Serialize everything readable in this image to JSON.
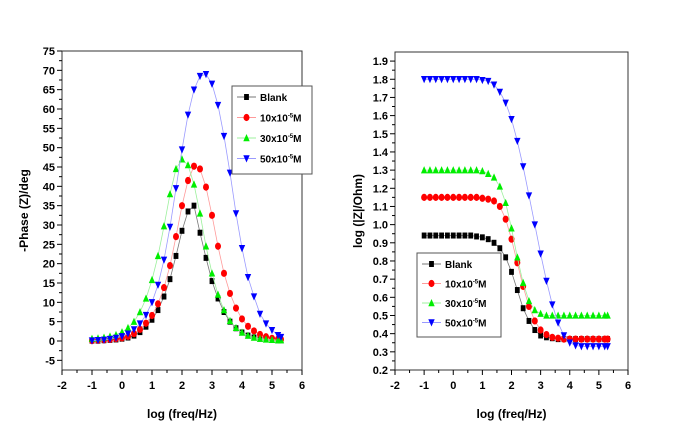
{
  "chart_data": [
    {
      "type": "line",
      "id": "phase",
      "title": "",
      "xlabel": "log (freq/Hz)",
      "ylabel": "-Phase (Z)/deg",
      "xlim": [
        -2,
        6
      ],
      "ylim": [
        -7.5,
        75
      ],
      "xticks": [
        -2,
        -1,
        0,
        1,
        2,
        3,
        4,
        5,
        6
      ],
      "xtick_labels": [
        "-2",
        "-1",
        "0",
        "1",
        "2",
        "3",
        "4",
        "5",
        "6"
      ],
      "yticks": [
        -5,
        0,
        5,
        10,
        15,
        20,
        25,
        30,
        35,
        40,
        45,
        50,
        55,
        60,
        65,
        70,
        75
      ],
      "ytick_labels": [
        "-5",
        "0",
        "5",
        "10",
        "15",
        "20",
        "25",
        "30",
        "35",
        "40",
        "45",
        "50",
        "55",
        "60",
        "65",
        "70",
        "75"
      ],
      "grid": false,
      "legend_position": "top-right",
      "x": [
        -1.0,
        -0.8,
        -0.6,
        -0.4,
        -0.2,
        0.0,
        0.2,
        0.4,
        0.6,
        0.8,
        1.0,
        1.2,
        1.4,
        1.6,
        1.8,
        2.0,
        2.2,
        2.4,
        2.6,
        2.8,
        3.0,
        3.2,
        3.4,
        3.6,
        3.8,
        4.0,
        4.2,
        4.4,
        4.6,
        4.8,
        5.0,
        5.2,
        5.3
      ],
      "series": [
        {
          "name": "Blank",
          "color": "#000000",
          "marker": "square",
          "values": [
            0.1,
            0.1,
            0.2,
            0.3,
            0.4,
            0.6,
            0.9,
            1.4,
            2.3,
            3.7,
            5.5,
            8.0,
            11.5,
            16.0,
            22.0,
            28.5,
            33.5,
            35.0,
            28.0,
            21.5,
            15.5,
            11.0,
            7.5,
            5.0,
            3.3,
            2.2,
            1.4,
            0.9,
            0.6,
            0.4,
            0.3,
            0.2,
            0.2
          ]
        },
        {
          "name": "10x10^-5M",
          "color": "#ff0000",
          "marker": "circle",
          "values": [
            0.1,
            0.2,
            0.3,
            0.4,
            0.6,
            0.8,
            1.2,
            1.9,
            3.0,
            4.6,
            6.6,
            9.6,
            13.8,
            19.5,
            27.0,
            35.0,
            41.5,
            45.2,
            44.5,
            39.8,
            32.5,
            24.5,
            17.5,
            12.3,
            8.5,
            5.7,
            3.8,
            2.6,
            1.7,
            1.1,
            0.7,
            0.5,
            0.4
          ]
        },
        {
          "name": "30x10^-5M",
          "color": "#00ee00",
          "marker": "triangle-up",
          "values": [
            0.6,
            0.7,
            0.9,
            1.2,
            1.6,
            2.3,
            3.4,
            5.0,
            7.5,
            11.0,
            15.8,
            22.0,
            29.7,
            38.0,
            44.5,
            47.0,
            45.5,
            40.5,
            33.0,
            24.5,
            17.5,
            12.0,
            8.0,
            5.2,
            3.4,
            2.2,
            1.4,
            0.9,
            0.6,
            0.4,
            0.3,
            0.2,
            0.2
          ]
        },
        {
          "name": "50x10^-5M",
          "color": "#0000ff",
          "marker": "triangle-down",
          "values": [
            0.1,
            0.2,
            0.3,
            0.5,
            0.8,
            1.2,
            1.9,
            3.0,
            4.5,
            6.7,
            10.0,
            14.5,
            21.0,
            29.5,
            39.5,
            49.5,
            58.5,
            65.0,
            68.5,
            69.0,
            66.5,
            61.0,
            53.0,
            43.5,
            33.0,
            24.0,
            16.5,
            11.5,
            7.0,
            4.5,
            2.8,
            1.5,
            1.0
          ]
        }
      ]
    },
    {
      "type": "line",
      "id": "bode",
      "title": "",
      "xlabel": "log (freq/Hz)",
      "ylabel": "log (|Z|/Ohm)",
      "xlim": [
        -2,
        6
      ],
      "ylim": [
        0.2,
        1.95
      ],
      "xticks": [
        -2,
        -1,
        0,
        1,
        2,
        3,
        4,
        5,
        6
      ],
      "xtick_labels": [
        "-2",
        "-1",
        "0",
        "1",
        "2",
        "3",
        "4",
        "5",
        "6"
      ],
      "yticks": [
        0.2,
        0.3,
        0.4,
        0.5,
        0.6,
        0.7,
        0.8,
        0.9,
        1.0,
        1.1,
        1.2,
        1.3,
        1.4,
        1.5,
        1.6,
        1.7,
        1.8,
        1.9
      ],
      "ytick_labels": [
        "0.2",
        "0.3",
        "0.4",
        "0.5",
        "0.6",
        "0.7",
        "0.8",
        "0.9",
        "1.0",
        "1.1",
        "1.2",
        "1.3",
        "1.4",
        "1.5",
        "1.6",
        "1.7",
        "1.8",
        "1.9"
      ],
      "grid": false,
      "legend_position": "center-left",
      "x": [
        -1.0,
        -0.8,
        -0.6,
        -0.4,
        -0.2,
        0.0,
        0.2,
        0.4,
        0.6,
        0.8,
        1.0,
        1.2,
        1.4,
        1.6,
        1.8,
        2.0,
        2.2,
        2.4,
        2.6,
        2.8,
        3.0,
        3.2,
        3.4,
        3.6,
        3.8,
        4.0,
        4.2,
        4.4,
        4.6,
        4.8,
        5.0,
        5.2,
        5.3
      ],
      "series": [
        {
          "name": "Blank",
          "color": "#000000",
          "marker": "square",
          "values": [
            0.94,
            0.94,
            0.94,
            0.94,
            0.94,
            0.94,
            0.94,
            0.94,
            0.94,
            0.935,
            0.93,
            0.92,
            0.9,
            0.87,
            0.82,
            0.74,
            0.64,
            0.54,
            0.47,
            0.42,
            0.39,
            0.38,
            0.375,
            0.37,
            0.37,
            0.37,
            0.37,
            0.37,
            0.37,
            0.37,
            0.37,
            0.37,
            0.37
          ]
        },
        {
          "name": "10x10^-5M",
          "color": "#ff0000",
          "marker": "circle",
          "values": [
            1.15,
            1.15,
            1.15,
            1.15,
            1.15,
            1.15,
            1.15,
            1.15,
            1.15,
            1.15,
            1.145,
            1.14,
            1.13,
            1.1,
            1.03,
            0.92,
            0.79,
            0.66,
            0.55,
            0.47,
            0.42,
            0.395,
            0.38,
            0.375,
            0.37,
            0.37,
            0.37,
            0.37,
            0.37,
            0.37,
            0.37,
            0.37,
            0.37
          ]
        },
        {
          "name": "30x10^-5M",
          "color": "#00ee00",
          "marker": "triangle-up",
          "values": [
            1.3,
            1.3,
            1.3,
            1.3,
            1.3,
            1.3,
            1.3,
            1.3,
            1.3,
            1.3,
            1.295,
            1.28,
            1.26,
            1.21,
            1.12,
            0.98,
            0.82,
            0.68,
            0.58,
            0.53,
            0.51,
            0.5,
            0.5,
            0.5,
            0.5,
            0.5,
            0.5,
            0.5,
            0.5,
            0.5,
            0.5,
            0.5,
            0.5
          ]
        },
        {
          "name": "50x10^-5M",
          "color": "#0000ff",
          "marker": "triangle-down",
          "values": [
            1.8,
            1.8,
            1.8,
            1.8,
            1.8,
            1.8,
            1.8,
            1.8,
            1.8,
            1.8,
            1.795,
            1.79,
            1.77,
            1.73,
            1.67,
            1.58,
            1.46,
            1.32,
            1.16,
            1.0,
            0.84,
            0.69,
            0.56,
            0.46,
            0.39,
            0.35,
            0.335,
            0.33,
            0.33,
            0.33,
            0.33,
            0.33,
            0.33
          ]
        }
      ]
    }
  ]
}
